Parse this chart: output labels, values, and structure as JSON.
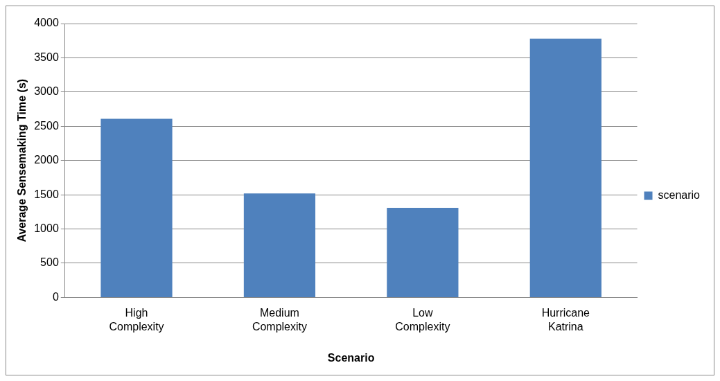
{
  "chart_data": {
    "type": "bar",
    "xlabel": "Scenario",
    "ylabel": "Average Sensemaking Time (s)",
    "categories": [
      "High Complexity",
      "Medium Complexity",
      "Low Complexity",
      "Hurricane Katrina"
    ],
    "series": [
      {
        "name": "scenario",
        "color": "#4f81bd",
        "values": [
          2610,
          1520,
          1310,
          3780
        ]
      }
    ],
    "ylim": [
      0,
      4000
    ],
    "yticks": [
      0,
      500,
      1000,
      1500,
      2000,
      2500,
      3000,
      3500,
      4000
    ],
    "grid": "y",
    "legend": "right"
  }
}
